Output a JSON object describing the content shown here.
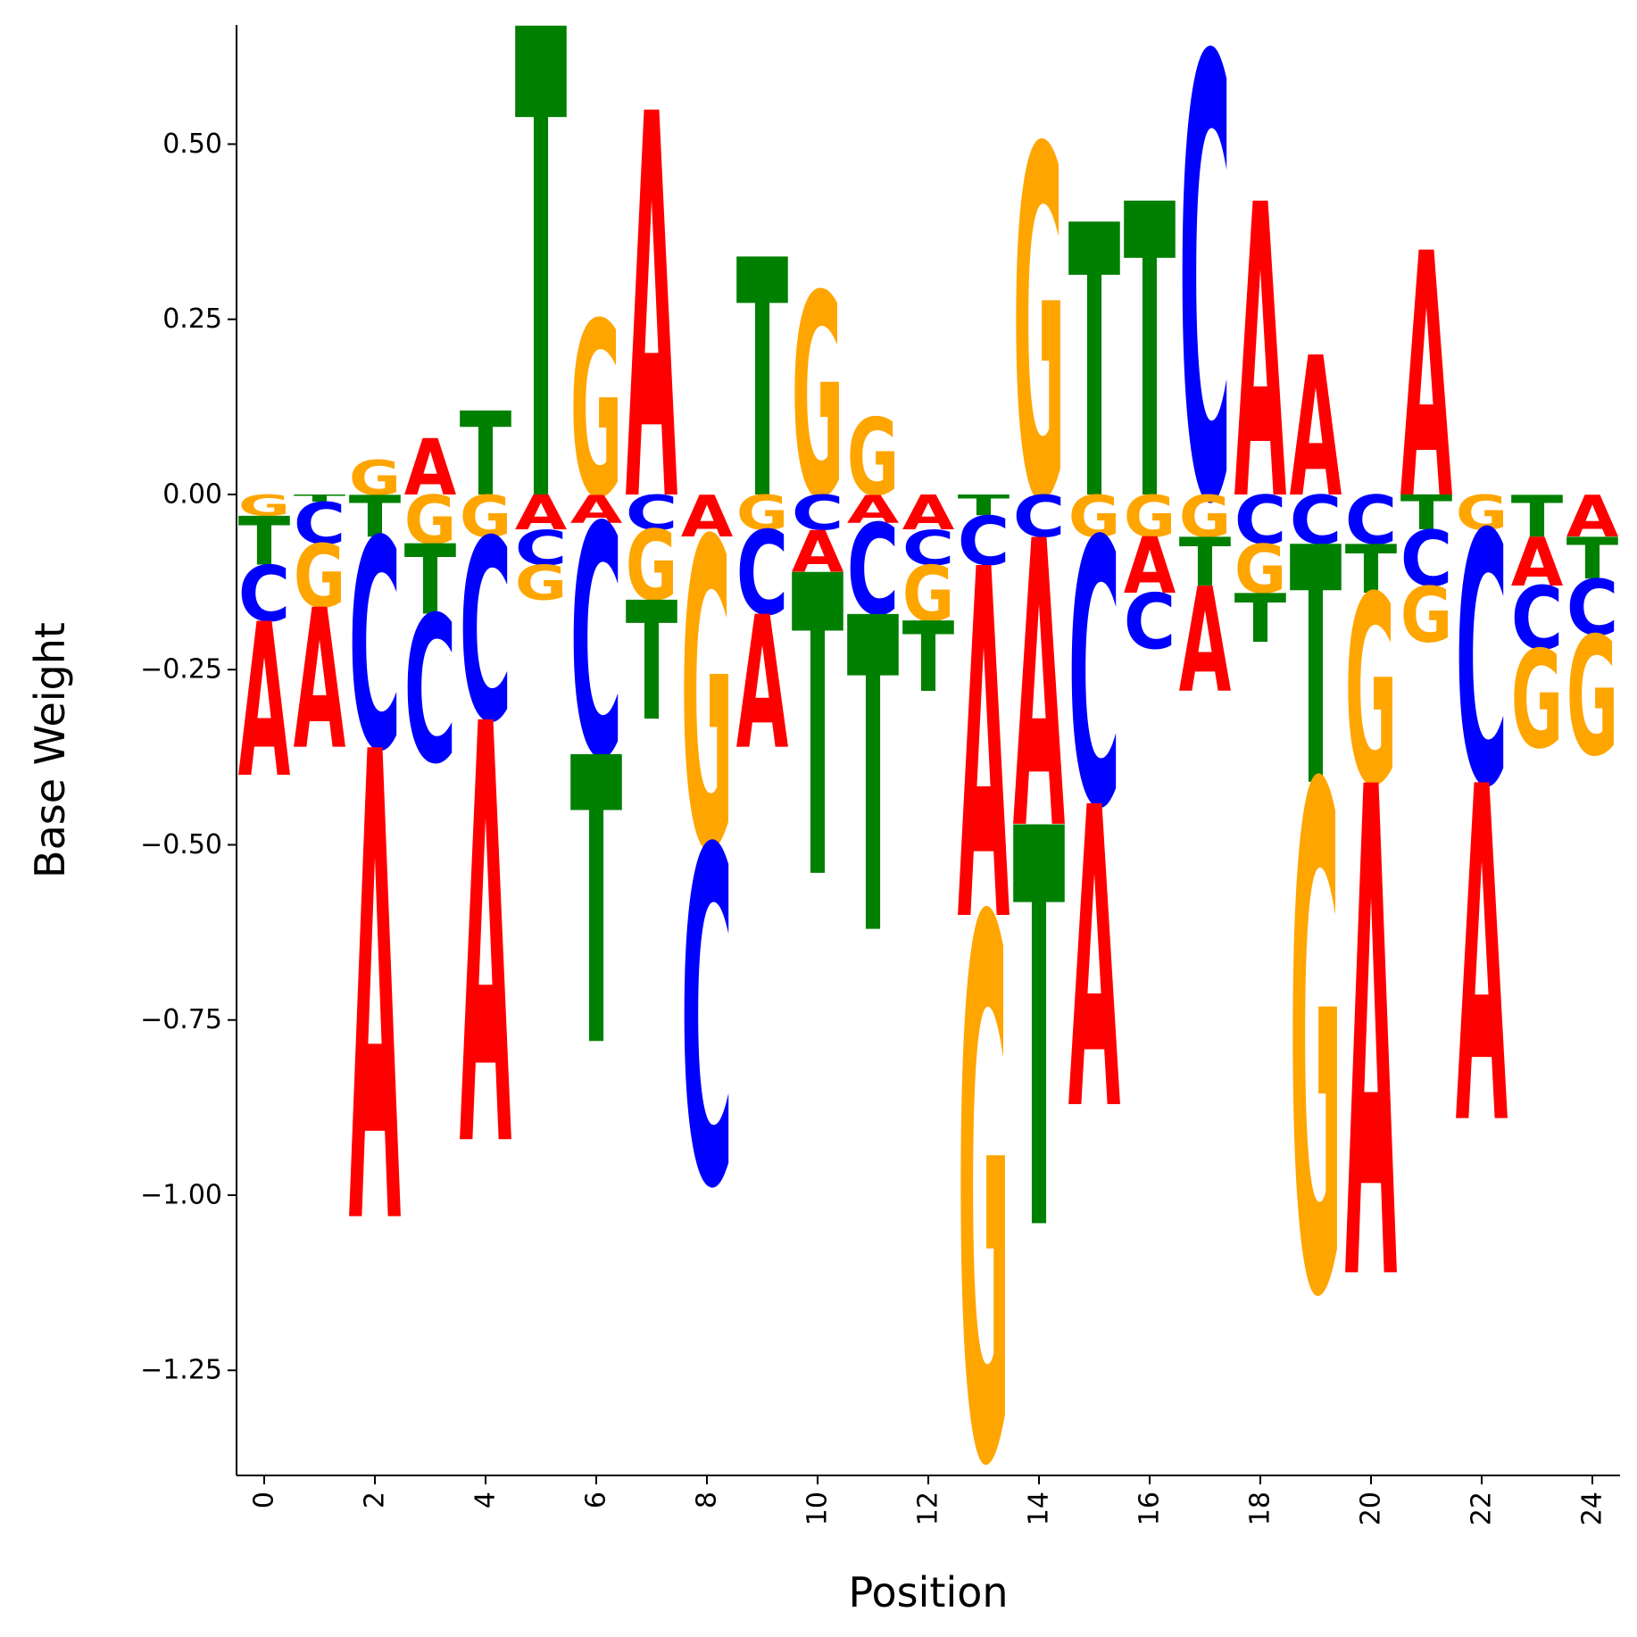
{
  "chart_data": {
    "type": "sequence-logo",
    "xlabel": "Position",
    "ylabel": "Base Weight",
    "xlim": [
      -0.5,
      24.5
    ],
    "ylim": [
      -1.4,
      0.67
    ],
    "x_ticks": [
      0,
      2,
      4,
      6,
      8,
      10,
      12,
      14,
      16,
      18,
      20,
      22,
      24
    ],
    "x_tick_labels": [
      "0",
      "2",
      "4",
      "6",
      "8",
      "10",
      "12",
      "14",
      "16",
      "18",
      "20",
      "22",
      "24"
    ],
    "y_ticks": [
      0.5,
      0.25,
      0.0,
      -0.25,
      -0.5,
      -0.75,
      -1.0,
      -1.25
    ],
    "y_tick_labels": [
      "0.50",
      "0.25",
      "0.00",
      "−0.25",
      "−0.50",
      "−0.75",
      "−1.00",
      "−1.25"
    ],
    "colors": {
      "A": "#ff0000",
      "C": "#0000ff",
      "G": "#ffa500",
      "T": "#008000"
    },
    "positions": [
      {
        "pos": 0,
        "A": -0.22,
        "C": -0.08,
        "G": -0.03,
        "T": -0.07
      },
      {
        "pos": 1,
        "A": -0.2,
        "C": -0.06,
        "G": -0.09,
        "T": -0.01
      },
      {
        "pos": 2,
        "A": -0.67,
        "C": -0.3,
        "G": 0.05,
        "T": -0.06
      },
      {
        "pos": 3,
        "A": 0.08,
        "C": -0.21,
        "G": -0.07,
        "T": -0.1
      },
      {
        "pos": 4,
        "A": -0.6,
        "C": -0.26,
        "G": -0.06,
        "T": 0.12
      },
      {
        "pos": 5,
        "A": -0.05,
        "C": -0.05,
        "G": -0.05,
        "T": 0.67
      },
      {
        "pos": 6,
        "A": -0.04,
        "C": -0.33,
        "G": 0.25,
        "T": -0.41
      },
      {
        "pos": 7,
        "A": 0.55,
        "C": -0.05,
        "G": -0.1,
        "T": -0.17
      },
      {
        "pos": 8,
        "A": -0.06,
        "C": -0.48,
        "G": -0.44,
        "T": 0.0
      },
      {
        "pos": 9,
        "A": -0.19,
        "C": -0.12,
        "G": -0.05,
        "T": 0.34
      },
      {
        "pos": 10,
        "A": -0.06,
        "C": -0.05,
        "G": 0.29,
        "T": -0.43
      },
      {
        "pos": 11,
        "A": -0.04,
        "C": -0.13,
        "G": 0.11,
        "T": -0.45
      },
      {
        "pos": 12,
        "A": -0.05,
        "C": -0.05,
        "G": -0.08,
        "T": -0.1
      },
      {
        "pos": 13,
        "A": -0.5,
        "C": -0.07,
        "G": -0.77,
        "T": -0.03
      },
      {
        "pos": 14,
        "A": -0.41,
        "C": -0.06,
        "G": 0.5,
        "T": -0.57
      },
      {
        "pos": 15,
        "A": -0.43,
        "C": -0.38,
        "G": -0.06,
        "T": 0.39
      },
      {
        "pos": 16,
        "A": -0.08,
        "C": -0.08,
        "G": -0.06,
        "T": 0.42
      },
      {
        "pos": 17,
        "A": -0.15,
        "C": 0.63,
        "G": -0.06,
        "T": -0.07
      },
      {
        "pos": 18,
        "A": 0.42,
        "C": -0.07,
        "G": -0.07,
        "T": -0.07
      },
      {
        "pos": 19,
        "A": 0.2,
        "C": -0.07,
        "G": -0.72,
        "T": -0.34
      },
      {
        "pos": 20,
        "A": -0.7,
        "C": -0.07,
        "G": -0.27,
        "T": -0.07
      },
      {
        "pos": 21,
        "A": 0.35,
        "C": -0.08,
        "G": -0.08,
        "T": -0.05
      },
      {
        "pos": 22,
        "A": -0.48,
        "C": -0.36,
        "G": -0.05,
        "T": 0.0
      },
      {
        "pos": 23,
        "A": -0.07,
        "C": -0.09,
        "G": -0.14,
        "T": -0.06
      },
      {
        "pos": 24,
        "A": -0.06,
        "C": -0.08,
        "G": -0.17,
        "T": -0.06
      }
    ]
  }
}
